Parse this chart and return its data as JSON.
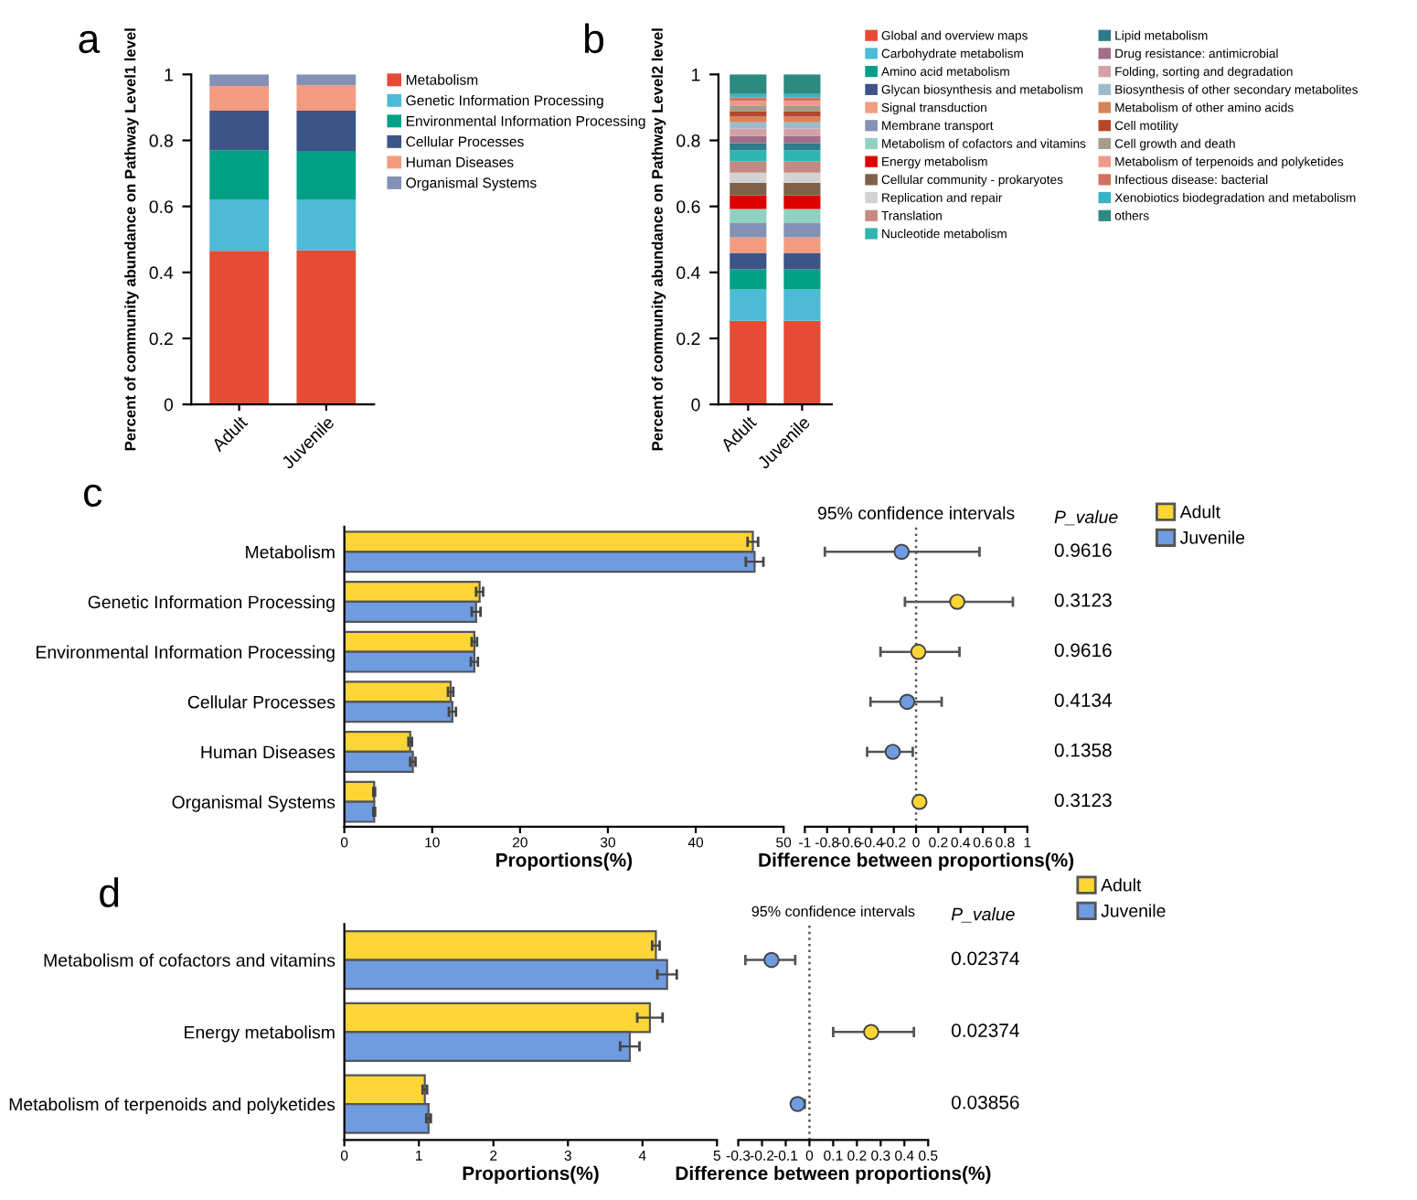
{
  "chart_data": [
    {
      "type": "bar",
      "title": "a",
      "ylabel": "Percent of community abundance on Pathway Level1 level",
      "categories": [
        "Adult",
        "Juvenile"
      ],
      "stacked": true,
      "ylim": [
        0,
        1
      ],
      "yticks": [
        0,
        0.2,
        0.4,
        0.6,
        0.8,
        1
      ],
      "legend": "right",
      "series": [
        {
          "name": "Metabolism",
          "color": "#e64b35",
          "values": [
            0.465,
            0.467
          ]
        },
        {
          "name": "Genetic Information Processing",
          "color": "#4dbbd5",
          "values": [
            0.155,
            0.153
          ]
        },
        {
          "name": "Environmental Information Processing",
          "color": "#00a087",
          "values": [
            0.15,
            0.148
          ]
        },
        {
          "name": "Cellular Processes",
          "color": "#3c5488",
          "values": [
            0.12,
            0.122
          ]
        },
        {
          "name": "Human Diseases",
          "color": "#f39b7f",
          "values": [
            0.075,
            0.077
          ]
        },
        {
          "name": "Organismal Systems",
          "color": "#8491b4",
          "values": [
            0.035,
            0.033
          ]
        }
      ]
    },
    {
      "type": "bar",
      "title": "b",
      "ylabel": "Percent of community abundance on Pathway Level2 level",
      "categories": [
        "Adult",
        "Juvenile"
      ],
      "stacked": true,
      "ylim": [
        0,
        1
      ],
      "yticks": [
        0,
        0.2,
        0.4,
        0.6,
        0.8,
        1
      ],
      "legend": "right",
      "series": [
        {
          "name": "Global and overview maps",
          "color": "#e64b35",
          "values": [
            0.253,
            0.253
          ]
        },
        {
          "name": "Carbohydrate metabolism",
          "color": "#4dbbd5",
          "values": [
            0.095,
            0.095
          ]
        },
        {
          "name": "Amino acid metabolism",
          "color": "#00a087",
          "values": [
            0.061,
            0.061
          ]
        },
        {
          "name": "Glycan biosynthesis and metabolism",
          "color": "#3c5488",
          "values": [
            0.05,
            0.05
          ]
        },
        {
          "name": "Signal transduction",
          "color": "#f39b7f",
          "values": [
            0.047,
            0.047
          ]
        },
        {
          "name": "Membrane transport",
          "color": "#8491b4",
          "values": [
            0.043,
            0.043
          ]
        },
        {
          "name": "Metabolism of cofactors and vitamins",
          "color": "#91d1c2",
          "values": [
            0.043,
            0.043
          ]
        },
        {
          "name": "Energy metabolism",
          "color": "#dc0000",
          "values": [
            0.041,
            0.041
          ]
        },
        {
          "name": "Cellular community - prokaryotes",
          "color": "#7e6148",
          "values": [
            0.039,
            0.039
          ]
        },
        {
          "name": "Replication and repair",
          "color": "#d3d3d3",
          "values": [
            0.03,
            0.03
          ]
        },
        {
          "name": "Translation",
          "color": "#c48a82",
          "values": [
            0.034,
            0.034
          ]
        },
        {
          "name": "Nucleotide metabolism",
          "color": "#2fb5b0",
          "values": [
            0.034,
            0.034
          ]
        },
        {
          "name": "Lipid metabolism",
          "color": "#2e7b8a",
          "values": [
            0.022,
            0.022
          ]
        },
        {
          "name": "Drug resistance: antimicrobial",
          "color": "#9e6f88",
          "values": [
            0.022,
            0.022
          ]
        },
        {
          "name": "Folding, sorting and degradation",
          "color": "#d4a0a8",
          "values": [
            0.022,
            0.022
          ]
        },
        {
          "name": "Biosynthesis of other secondary metabolites",
          "color": "#9dbccb",
          "values": [
            0.019,
            0.019
          ]
        },
        {
          "name": "Metabolism of other amino acids",
          "color": "#d6845c",
          "values": [
            0.017,
            0.017
          ]
        },
        {
          "name": "Cell motility",
          "color": "#b5472b",
          "values": [
            0.017,
            0.017
          ]
        },
        {
          "name": "Cell growth and death",
          "color": "#a89a8c",
          "values": [
            0.017,
            0.017
          ]
        },
        {
          "name": "Metabolism of terpenoids and polyketides",
          "color": "#ee9a88",
          "values": [
            0.013,
            0.013
          ]
        },
        {
          "name": "Infectious disease: bacterial",
          "color": "#d4705f",
          "values": [
            0.011,
            0.011
          ]
        },
        {
          "name": "Xenobiotics biodegradation and metabolism",
          "color": "#3bb3c6",
          "values": [
            0.011,
            0.011
          ]
        },
        {
          "name": "others",
          "color": "#2c8a80",
          "values": [
            0.059,
            0.059
          ]
        }
      ]
    },
    {
      "type": "bar",
      "title": "c",
      "xlabel": "Proportions(%)",
      "orientation": "horizontal",
      "categories": [
        "Metabolism",
        "Genetic Information Processing",
        "Environmental Information Processing",
        "Cellular Processes",
        "Human Diseases",
        "Organismal Systems"
      ],
      "xlim": [
        0,
        50
      ],
      "xticks": [
        0,
        10,
        20,
        30,
        40,
        50
      ],
      "series": [
        {
          "color": "#fdd535",
          "values": [
            46.5,
            15.4,
            14.8,
            12.1,
            7.5,
            3.4
          ],
          "errors": [
            0.6,
            0.4,
            0.3,
            0.3,
            0.2,
            0.1
          ]
        },
        {
          "color": "#6f9be0",
          "values": [
            46.7,
            15.0,
            14.8,
            12.3,
            7.8,
            3.4
          ],
          "errors": [
            1.0,
            0.5,
            0.4,
            0.4,
            0.3,
            0.1
          ]
        }
      ]
    },
    {
      "type": "scatter",
      "title": "95% confidence intervals",
      "xlabel": "Difference between proportions(%)",
      "orientation": "horizontal",
      "marker": "circle",
      "legend": "right",
      "categories": [
        null,
        null,
        null,
        null,
        null,
        null
      ],
      "xlim": [
        -1,
        1
      ],
      "xticks": [
        -1,
        -0.8,
        -0.6,
        -0.4,
        -0.2,
        0,
        0.2,
        0.4,
        0.6,
        0.8,
        1
      ],
      "ref_lines": [
        {
          "axis": "x",
          "value": 0,
          "line_style": "dotted",
          "color": "#555555"
        }
      ],
      "series": [
        {
          "name": "Adult",
          "color": "#fdd535",
          "values": [
            null,
            0.37,
            0.02,
            null,
            null,
            0.03
          ],
          "errors": [
            null,
            [
              -0.1,
              0.87
            ],
            [
              -0.32,
              0.39
            ],
            null,
            null,
            null
          ]
        },
        {
          "name": "Juvenile",
          "color": "#6f9be0",
          "values": [
            -0.13,
            null,
            null,
            -0.08,
            -0.21,
            null
          ],
          "errors": [
            [
              -0.82,
              0.57
            ],
            null,
            null,
            [
              -0.41,
              0.23
            ],
            [
              -0.44,
              -0.03
            ],
            null
          ]
        }
      ],
      "annotations": [
        "P_value",
        "0.9616",
        "0.3123",
        "0.9616",
        "0.4134",
        "0.1358",
        "0.3123"
      ]
    },
    {
      "type": "bar",
      "title": "d",
      "xlabel": "Proportions(%)",
      "orientation": "horizontal",
      "categories": [
        "Metabolism of cofactors and vitamins",
        "Energy metabolism",
        "Metabolism of terpenoids and polyketides"
      ],
      "xlim": [
        0,
        5
      ],
      "xticks": [
        0,
        1,
        2,
        3,
        4,
        5
      ],
      "series": [
        {
          "color": "#fdd535",
          "values": [
            4.18,
            4.1,
            1.08
          ],
          "errors": [
            0.05,
            0.17,
            0.03
          ]
        },
        {
          "color": "#6f9be0",
          "values": [
            4.33,
            3.83,
            1.13
          ],
          "errors": [
            0.13,
            0.13,
            0.03
          ]
        }
      ]
    },
    {
      "type": "scatter",
      "title": "95% confidence intervals",
      "xlabel": "Difference between proportions(%)",
      "orientation": "horizontal",
      "marker": "circle",
      "legend": "right",
      "categories": [
        null,
        null,
        null
      ],
      "xlim": [
        -0.3,
        0.5
      ],
      "xticks": [
        -0.3,
        -0.2,
        -0.1,
        0,
        0.1,
        0.2,
        0.3,
        0.4,
        0.5
      ],
      "ref_lines": [
        {
          "axis": "x",
          "value": 0,
          "line_style": "dotted",
          "color": "#555555"
        }
      ],
      "series": [
        {
          "name": "Adult",
          "color": "#fdd535",
          "values": [
            null,
            0.26,
            null
          ],
          "errors": [
            null,
            [
              0.1,
              0.44
            ],
            null
          ]
        },
        {
          "name": "Juvenile",
          "color": "#6f9be0",
          "values": [
            -0.16,
            null,
            -0.05
          ],
          "errors": [
            [
              -0.27,
              -0.06
            ],
            null,
            [
              -0.07,
              -0.02
            ]
          ]
        }
      ],
      "annotations": [
        "P_value",
        "0.02374",
        "0.02374",
        "0.03856"
      ]
    }
  ]
}
